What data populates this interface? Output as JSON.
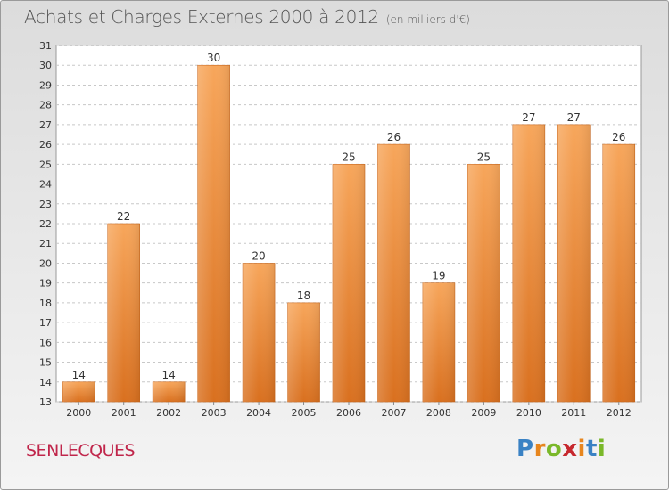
{
  "header": {
    "title": "Achats et Charges Externes 2000 à 2012",
    "subtitle": "(en milliers d'€)"
  },
  "commune": "SENLECQUES",
  "logo": {
    "letters": [
      "P",
      "r",
      "o",
      "x",
      "i",
      "t",
      "i"
    ],
    "colors": [
      "#3a82c4",
      "#e7861e",
      "#7ab829",
      "#c6282e",
      "#e7861e",
      "#3a82c4",
      "#7ab829"
    ]
  },
  "colors": {
    "bar_light": "#f7a65b",
    "bar_dark": "#d9701f",
    "grid": "#c8c8c8",
    "axis_text": "#333333",
    "plot_bg": "#ffffff"
  },
  "chart_data": {
    "type": "bar",
    "title": "Achats et Charges Externes 2000 à 2012",
    "subtitle": "(en milliers d'€)",
    "categories": [
      "2000",
      "2001",
      "2002",
      "2003",
      "2004",
      "2005",
      "2006",
      "2007",
      "2008",
      "2009",
      "2010",
      "2011",
      "2012"
    ],
    "values": [
      14,
      22,
      14,
      30,
      20,
      18,
      25,
      26,
      19,
      25,
      27,
      27,
      26
    ],
    "ylim": [
      13,
      31
    ],
    "yticks": [
      13,
      14,
      15,
      16,
      17,
      18,
      19,
      20,
      21,
      22,
      23,
      24,
      25,
      26,
      27,
      28,
      29,
      30,
      31
    ],
    "grid": true,
    "data_labels": true
  }
}
